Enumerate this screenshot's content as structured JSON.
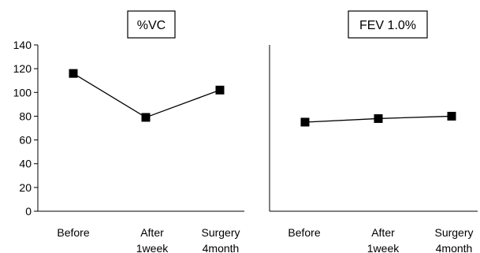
{
  "chart_data": [
    {
      "type": "line",
      "title": "%VC",
      "categories": [
        "Before",
        "After 1week",
        "Surgery 4month"
      ],
      "category_lines": [
        [
          "Before"
        ],
        [
          "After",
          "1week"
        ],
        [
          "Surgery",
          "4month"
        ]
      ],
      "series": [
        {
          "values": [
            116,
            79,
            102
          ]
        }
      ],
      "ylim": [
        0,
        140
      ],
      "yticks": [
        0,
        20,
        40,
        60,
        80,
        100,
        120,
        140
      ],
      "ytick_labels": [
        "0",
        "20",
        "40",
        "60",
        "80",
        "100",
        "120",
        "140"
      ],
      "grid": false,
      "marker": "square",
      "color": "#000000"
    },
    {
      "type": "line",
      "title": "FEV 1.0%",
      "categories": [
        "Before",
        "After 1week",
        "Surgery 4month"
      ],
      "category_lines": [
        [
          "Before"
        ],
        [
          "After",
          "1week"
        ],
        [
          "Surgery",
          "4month"
        ]
      ],
      "series": [
        {
          "values": [
            75,
            78,
            80
          ]
        }
      ],
      "ylim": [
        0,
        140
      ],
      "grid": false,
      "marker": "square",
      "color": "#000000"
    }
  ]
}
